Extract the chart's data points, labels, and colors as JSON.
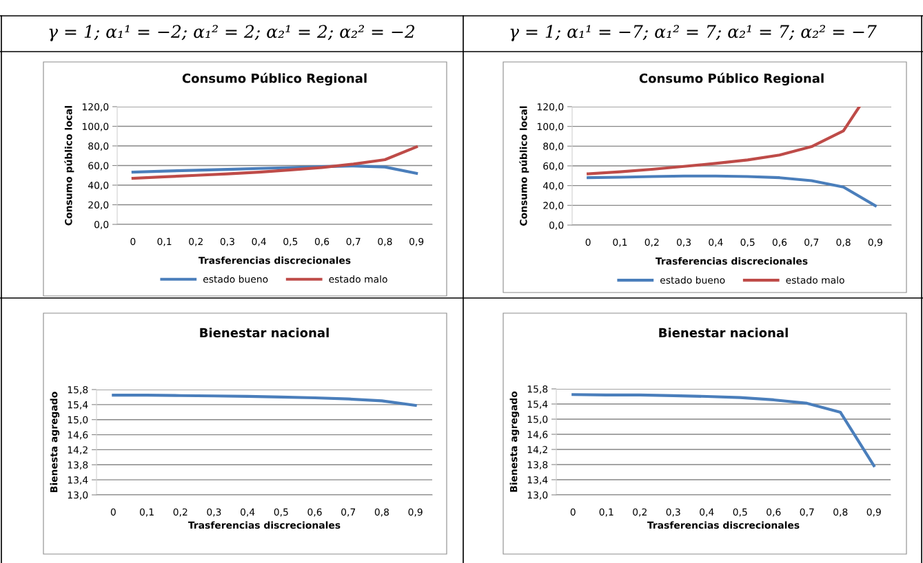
{
  "chart_data": [
    {
      "type": "line",
      "title": "Consumo Público Regional",
      "xlabel": "Trasferencias discrecionales",
      "ylabel": "Consumo público local",
      "annotations": [
        "γ = 1; α₁¹ = −2; α₁² = 2; α₂¹ = 2; α₂² = −2"
      ],
      "x": [
        0,
        0.1,
        0.2,
        0.3,
        0.4,
        0.5,
        0.6,
        0.7,
        0.8,
        0.9
      ],
      "series": [
        {
          "name": "estado bueno",
          "color": "#4a7ebb",
          "values": [
            53.3,
            54.3,
            55.2,
            56.1,
            57,
            57.9,
            58.9,
            59.6,
            58.5,
            52
          ]
        },
        {
          "name": "estado malo",
          "color": "#be4b48",
          "values": [
            47,
            48.5,
            50,
            51.5,
            53.3,
            55.5,
            58,
            61.5,
            66,
            79
          ]
        }
      ],
      "xlim": [
        -0.05,
        0.95
      ],
      "xticks": [
        0,
        {
          "value": 0.1,
          "label": "0,1"
        },
        {
          "value": 0.2,
          "label": "0,2"
        },
        {
          "value": 0.3,
          "label": "0,3"
        },
        {
          "value": 0.4,
          "label": "0,4"
        },
        {
          "value": 0.5,
          "label": "0,5"
        },
        {
          "value": 0.6,
          "label": "0,6"
        },
        {
          "value": 0.7,
          "label": "0,7"
        },
        {
          "value": 0.8,
          "label": "0,8"
        },
        {
          "value": 0.9,
          "label": "0,9"
        }
      ],
      "ylim": [
        0,
        120
      ],
      "yticks": [
        {
          "value": 0,
          "label": "0,0"
        },
        {
          "value": 20,
          "label": "20,0"
        },
        {
          "value": 40,
          "label": "40,0"
        },
        {
          "value": 60,
          "label": "60,0"
        },
        {
          "value": 80,
          "label": "80,0"
        },
        {
          "value": 100,
          "label": "100,0"
        },
        {
          "value": 120,
          "label": "120,0"
        }
      ],
      "grid": "y",
      "legend": "bottom",
      "line_style": "solid"
    },
    {
      "type": "line",
      "title": "Consumo Público Regional",
      "xlabel": "Trasferencias discrecionales",
      "ylabel": "Consumo público local",
      "annotations": [
        "γ = 1; α₁¹ = −7; α₁² = 7; α₂¹ = 7; α₂² = −7"
      ],
      "x": [
        0,
        0.1,
        0.2,
        0.3,
        0.4,
        0.5,
        0.6,
        0.7,
        0.8,
        0.9
      ],
      "series": [
        {
          "name": "estado bueno",
          "color": "#4a7ebb",
          "values": [
            48,
            48.5,
            49.2,
            49.7,
            49.7,
            49.2,
            48,
            45,
            38.6,
            19.6
          ]
        },
        {
          "name": "estado malo",
          "color": "#be4b48",
          "x": [
            0,
            0.1,
            0.2,
            0.3,
            0.4,
            0.5,
            0.6,
            0.7,
            0.8,
            0.85
          ],
          "values": [
            52,
            54,
            56.5,
            59.5,
            62.5,
            66,
            71,
            79.5,
            95.5,
            120
          ]
        }
      ],
      "xlim": [
        -0.05,
        0.95
      ],
      "xticks": [
        0,
        {
          "value": 0.1,
          "label": "0,1"
        },
        {
          "value": 0.2,
          "label": "0,2"
        },
        {
          "value": 0.3,
          "label": "0,3"
        },
        {
          "value": 0.4,
          "label": "0,4"
        },
        {
          "value": 0.5,
          "label": "0,5"
        },
        {
          "value": 0.6,
          "label": "0,6"
        },
        {
          "value": 0.7,
          "label": "0,7"
        },
        {
          "value": 0.8,
          "label": "0,8"
        },
        {
          "value": 0.9,
          "label": "0,9"
        }
      ],
      "ylim": [
        0,
        120
      ],
      "yticks": [
        {
          "value": 0,
          "label": "0,0"
        },
        {
          "value": 20,
          "label": "20,0"
        },
        {
          "value": 40,
          "label": "40,0"
        },
        {
          "value": 60,
          "label": "60,0"
        },
        {
          "value": 80,
          "label": "80,0"
        },
        {
          "value": 100,
          "label": "100,0"
        },
        {
          "value": 120,
          "label": "120,0"
        }
      ],
      "grid": "y",
      "legend": "bottom",
      "line_style": "solid"
    },
    {
      "type": "line",
      "title": "Bienestar nacional",
      "xlabel": "Trasferencias discrecionales",
      "ylabel": "Bienesta agregado",
      "x": [
        0,
        0.1,
        0.2,
        0.3,
        0.4,
        0.5,
        0.6,
        0.7,
        0.8,
        0.9
      ],
      "series": [
        {
          "color": "#4a7ebb",
          "values": [
            15.65,
            15.65,
            15.64,
            15.63,
            15.62,
            15.6,
            15.58,
            15.55,
            15.5,
            15.38
          ]
        }
      ],
      "xlim": [
        -0.05,
        0.95
      ],
      "xticks": [
        0,
        {
          "value": 0.1,
          "label": "0,1"
        },
        {
          "value": 0.2,
          "label": "0,2"
        },
        {
          "value": 0.3,
          "label": "0,3"
        },
        {
          "value": 0.4,
          "label": "0,4"
        },
        {
          "value": 0.5,
          "label": "0,5"
        },
        {
          "value": 0.6,
          "label": "0,6"
        },
        {
          "value": 0.7,
          "label": "0,7"
        },
        {
          "value": 0.8,
          "label": "0,8"
        },
        {
          "value": 0.9,
          "label": "0,9"
        }
      ],
      "ylim": [
        13.0,
        15.8
      ],
      "yticks": [
        {
          "value": 13.0,
          "label": "13,0"
        },
        {
          "value": 13.4,
          "label": "13,4"
        },
        {
          "value": 13.8,
          "label": "13,8"
        },
        {
          "value": 14.2,
          "label": "14,2"
        },
        {
          "value": 14.6,
          "label": "14,6"
        },
        {
          "value": 15.0,
          "label": "15,0"
        },
        {
          "value": 15.4,
          "label": "15,4"
        },
        {
          "value": 15.8,
          "label": "15,8"
        }
      ],
      "grid": "y",
      "line_style": "solid"
    },
    {
      "type": "line",
      "title": "Bienestar nacional",
      "xlabel": "Trasferencias discrecionales",
      "ylabel": "Bienesta agregado",
      "x": [
        0,
        0.1,
        0.2,
        0.3,
        0.4,
        0.5,
        0.6,
        0.7,
        0.8,
        0.9
      ],
      "series": [
        {
          "color": "#4a7ebb",
          "values": [
            15.65,
            15.64,
            15.64,
            15.62,
            15.6,
            15.57,
            15.51,
            15.42,
            15.18,
            13.77
          ]
        }
      ],
      "xlim": [
        -0.05,
        0.95
      ],
      "xticks": [
        0,
        {
          "value": 0.1,
          "label": "0,1"
        },
        {
          "value": 0.2,
          "label": "0,2"
        },
        {
          "value": 0.3,
          "label": "0,3"
        },
        {
          "value": 0.4,
          "label": "0,4"
        },
        {
          "value": 0.5,
          "label": "0,5"
        },
        {
          "value": 0.6,
          "label": "0,6"
        },
        {
          "value": 0.7,
          "label": "0,7"
        },
        {
          "value": 0.8,
          "label": "0,8"
        },
        {
          "value": 0.9,
          "label": "0,9"
        }
      ],
      "ylim": [
        13.0,
        15.8
      ],
      "yticks": [
        {
          "value": 13.0,
          "label": "13,0"
        },
        {
          "value": 13.4,
          "label": "13,4"
        },
        {
          "value": 13.8,
          "label": "13,8"
        },
        {
          "value": 14.2,
          "label": "14,2"
        },
        {
          "value": 14.6,
          "label": "14,6"
        },
        {
          "value": 15.0,
          "label": "15,0"
        },
        {
          "value": 15.4,
          "label": "15,4"
        },
        {
          "value": 15.8,
          "label": "15,8"
        }
      ],
      "grid": "y",
      "line_style": "solid"
    }
  ]
}
